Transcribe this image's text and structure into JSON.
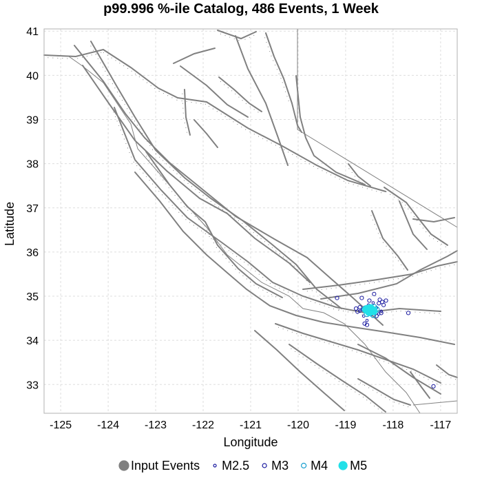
{
  "chart_data": {
    "type": "scatter",
    "title": "p99.996 %-ile Catalog, 486 Events, 1 Week",
    "xlabel": "Longitude",
    "ylabel": "Latitude",
    "xlim": [
      -125.35,
      -116.65
    ],
    "ylim": [
      32.35,
      41.05
    ],
    "xticks": [
      -125,
      -124,
      -123,
      -122,
      -121,
      -120,
      -119,
      -118,
      -117
    ],
    "yticks": [
      33,
      34,
      35,
      36,
      37,
      38,
      39,
      40,
      41
    ],
    "grid": true,
    "legend_position": "bottom",
    "colors": {
      "fault": "#808080",
      "grid": "#dddddd",
      "input": "#808080",
      "m25": "#1a1aa0",
      "m3": "#1a1aa0",
      "m4": "#1aa0d0",
      "m5": "#22e0e8"
    },
    "legend": [
      {
        "label": "Input Events",
        "marker": "filled-circle",
        "color": "#808080"
      },
      {
        "label": "M2.5",
        "marker": "small-open-circle",
        "color": "#1a1aa0"
      },
      {
        "label": "M3",
        "marker": "open-circle",
        "color": "#1a1aa0"
      },
      {
        "label": "M4",
        "marker": "open-circle",
        "color": "#1aa0d0"
      },
      {
        "label": "M5",
        "marker": "filled-circle",
        "color": "#22e0e8"
      }
    ],
    "series": [
      {
        "name": "M2.5",
        "points": [
          [
            -118.55,
            34.72
          ],
          [
            -118.5,
            34.65
          ],
          [
            -118.45,
            34.7
          ],
          [
            -118.6,
            34.75
          ],
          [
            -118.4,
            34.62
          ],
          [
            -118.52,
            34.8
          ],
          [
            -118.47,
            34.58
          ],
          [
            -118.58,
            34.68
          ],
          [
            -118.35,
            34.74
          ],
          [
            -118.65,
            34.7
          ],
          [
            -118.3,
            34.6
          ],
          [
            -118.7,
            34.66
          ],
          [
            -118.42,
            34.85
          ],
          [
            -118.62,
            34.55
          ],
          [
            -118.25,
            34.66
          ],
          [
            -118.55,
            34.45
          ]
        ]
      },
      {
        "name": "M3",
        "points": [
          [
            -119.18,
            34.96
          ],
          [
            -118.66,
            34.96
          ],
          [
            -118.4,
            35.05
          ],
          [
            -118.3,
            34.84
          ],
          [
            -118.23,
            34.87
          ],
          [
            -118.15,
            34.9
          ],
          [
            -118.2,
            34.8
          ],
          [
            -118.25,
            34.62
          ],
          [
            -118.7,
            34.75
          ],
          [
            -118.6,
            34.38
          ],
          [
            -118.55,
            34.35
          ],
          [
            -118.75,
            34.65
          ],
          [
            -118.5,
            34.9
          ],
          [
            -118.35,
            34.55
          ],
          [
            -117.68,
            34.62
          ],
          [
            -117.15,
            32.96
          ],
          [
            -118.78,
            34.72
          ],
          [
            -118.28,
            34.92
          ]
        ]
      },
      {
        "name": "M4",
        "points": [
          [
            -118.5,
            34.62
          ],
          [
            -118.4,
            34.75
          ],
          [
            -118.6,
            34.7
          ],
          [
            -118.45,
            34.68
          ],
          [
            -118.55,
            34.6
          ],
          [
            -118.35,
            34.7
          ],
          [
            -118.42,
            34.58
          ]
        ]
      },
      {
        "name": "M5",
        "points": [
          [
            -118.55,
            34.7
          ],
          [
            -118.48,
            34.72
          ],
          [
            -118.42,
            34.67
          ],
          [
            -118.5,
            34.65
          ]
        ]
      }
    ]
  }
}
